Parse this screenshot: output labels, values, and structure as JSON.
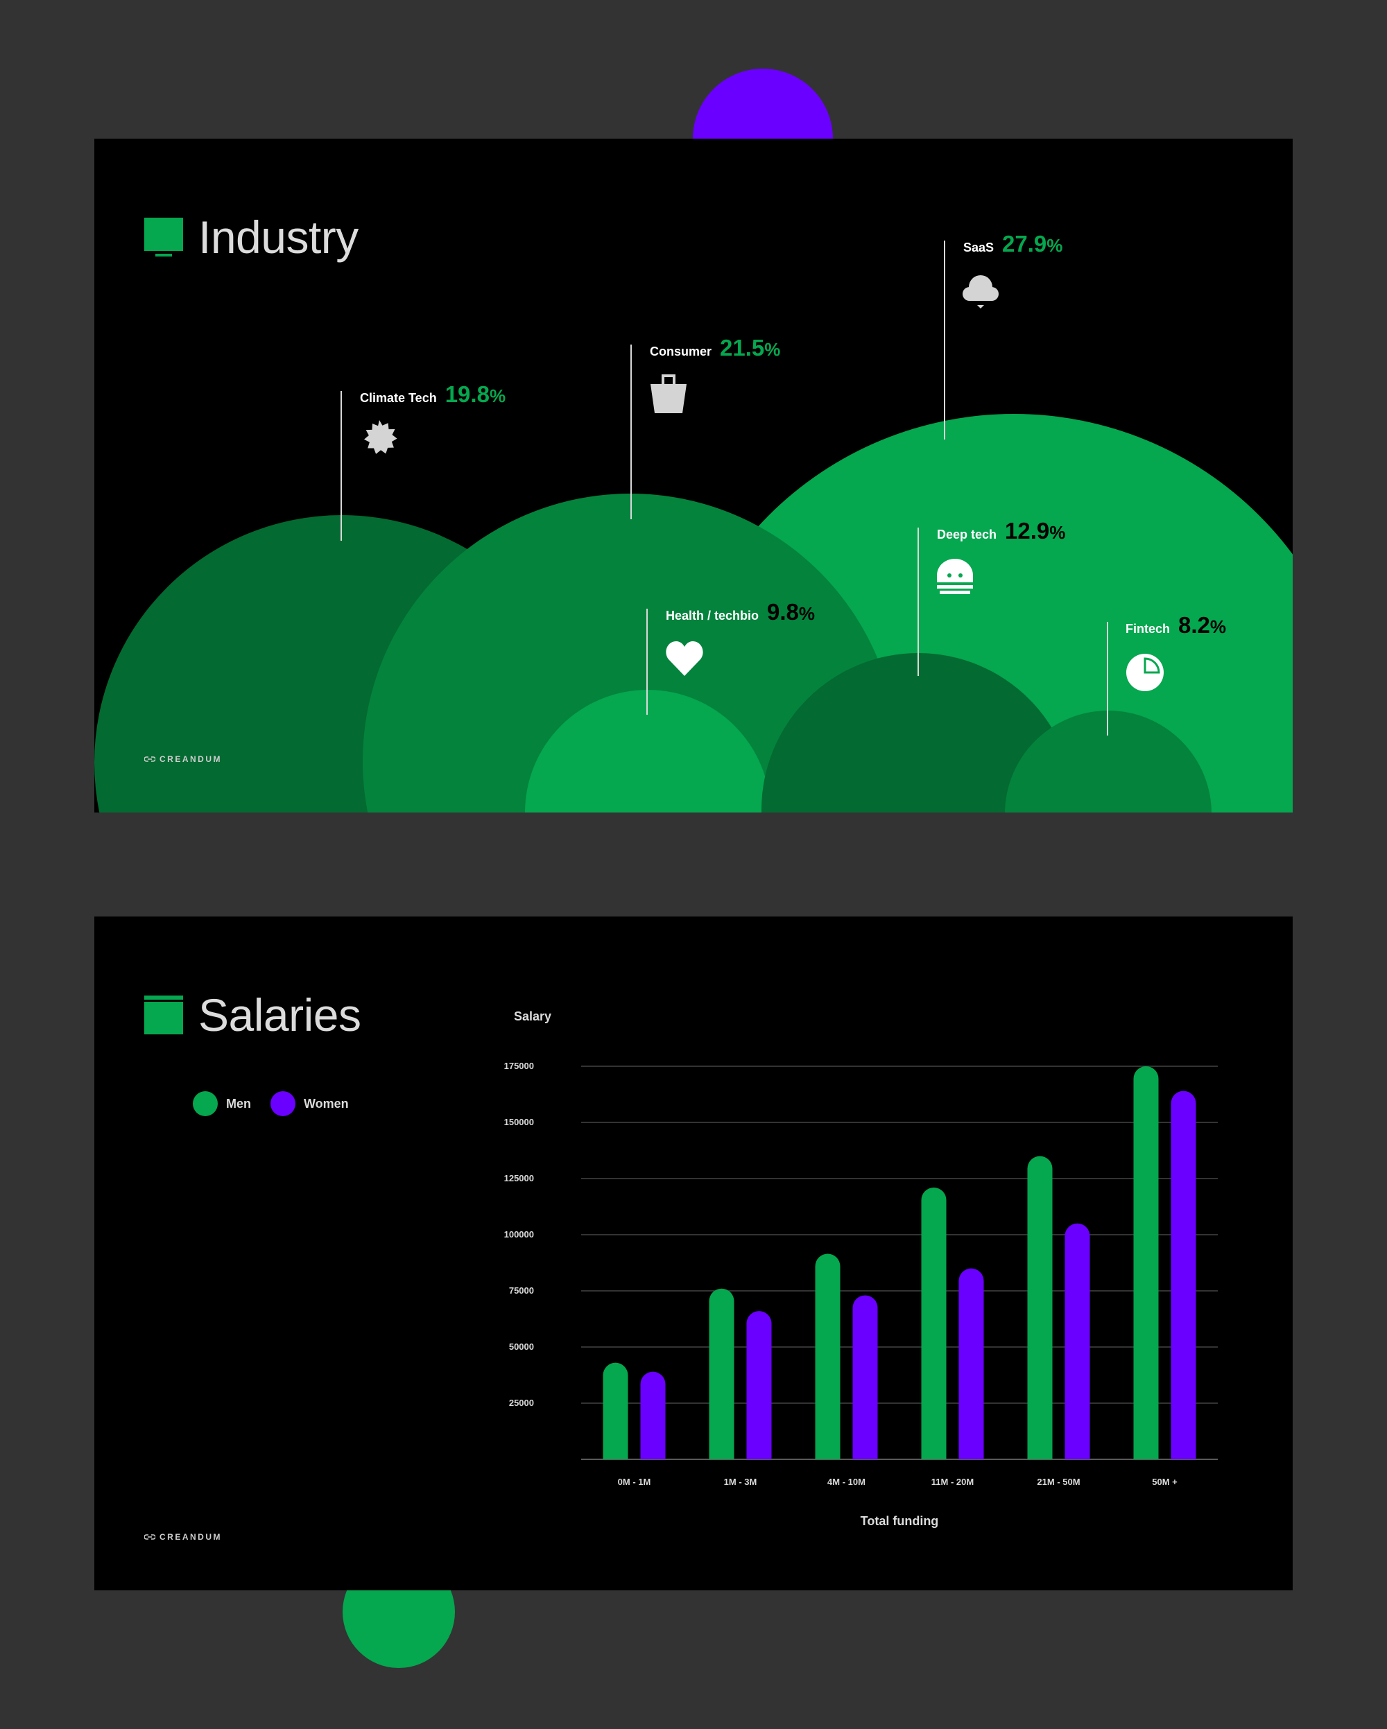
{
  "colors": {
    "page_bg": "#333333",
    "slide_bg": "#000000",
    "green": "#05A74F",
    "green_mid": "#04833C",
    "green_dark": "#036A31",
    "purple": "#6A00FF",
    "label_white": "#FFFFFF",
    "value_dark": "#000000",
    "grid": "#444444"
  },
  "industry": {
    "title": "Industry",
    "title_icon": "monitor-icon",
    "brand": "CREANDUM",
    "items": [
      {
        "name": "Climate Tech",
        "value": "19.8",
        "unit": "%",
        "icon": "sun-badge-icon"
      },
      {
        "name": "Consumer",
        "value": "21.5",
        "unit": "%",
        "icon": "shopping-bag-icon"
      },
      {
        "name": "SaaS",
        "value": "27.9",
        "unit": "%",
        "icon": "cloud-icon"
      },
      {
        "name": "Health / techbio",
        "value": "9.8",
        "unit": "%",
        "icon": "heart-icon"
      },
      {
        "name": "Deep tech",
        "value": "12.9",
        "unit": "%",
        "icon": "robot-icon"
      },
      {
        "name": "Fintech",
        "value": "8.2",
        "unit": "%",
        "icon": "pie-chart-icon"
      }
    ]
  },
  "salaries": {
    "title": "Salaries",
    "title_icon": "book-icon",
    "brand": "CREANDUM",
    "legend": [
      {
        "label": "Men",
        "color": "#05A74F"
      },
      {
        "label": "Women",
        "color": "#6A00FF"
      }
    ]
  },
  "chart_data": [
    {
      "type": "bar",
      "title": "Industry",
      "categories": [
        "Climate Tech",
        "Consumer",
        "SaaS",
        "Health / techbio",
        "Deep tech",
        "Fintech"
      ],
      "values": [
        19.8,
        21.5,
        27.9,
        9.8,
        12.9,
        8.2
      ],
      "unit": "%"
    },
    {
      "type": "bar",
      "title": "Salaries",
      "ylabel": "Salary",
      "xlabel": "Total funding",
      "categories": [
        "0M - 1M",
        "1M - 3M",
        "4M - 10M",
        "11M - 20M",
        "21M - 50M",
        "50M +"
      ],
      "ylim": [
        0,
        175000
      ],
      "yticks": [
        25000,
        50000,
        75000,
        100000,
        125000,
        150000,
        175000
      ],
      "ytick_labels": [
        "25000",
        "50000",
        "75000",
        "100000",
        "125000",
        "150000",
        "175000"
      ],
      "grid": true,
      "legend": "top-left",
      "series": [
        {
          "name": "Men",
          "values": [
            43000,
            76000,
            91500,
            121000,
            135000,
            175000
          ]
        },
        {
          "name": "Women",
          "values": [
            39000,
            66000,
            73000,
            85000,
            105000,
            164000
          ]
        }
      ]
    }
  ]
}
